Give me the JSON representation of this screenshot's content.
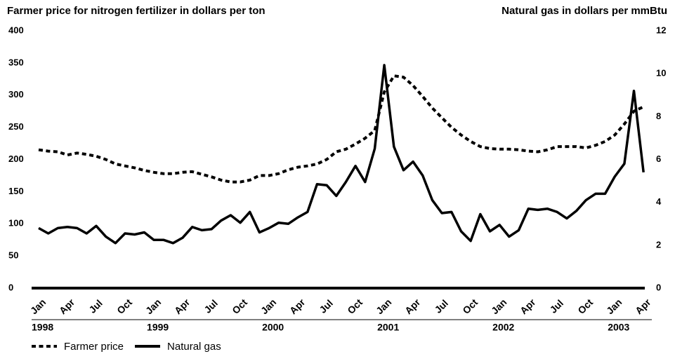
{
  "chart_data": {
    "type": "line",
    "title": "Farmer price for nitrogen fertilizer in dollars per ton",
    "y2_title": "Natural gas in dollars per mmBtu",
    "categories": [
      "Jan",
      null,
      null,
      "Apr",
      null,
      null,
      "Jul",
      null,
      null,
      "Oct",
      null,
      null,
      "Jan",
      null,
      null,
      "Apr",
      null,
      null,
      "Jul",
      null,
      null,
      "Oct",
      null,
      null,
      "Jan",
      null,
      null,
      "Apr",
      null,
      null,
      "Jul",
      null,
      null,
      "Oct",
      null,
      null,
      "Jan",
      null,
      null,
      "Apr",
      null,
      null,
      "Jul",
      null,
      null,
      "Oct",
      null,
      null,
      "Jan",
      null,
      null,
      "Apr",
      null,
      null,
      "Jul",
      null,
      null,
      "Oct",
      null,
      null,
      "Jan",
      null,
      null,
      "Apr"
    ],
    "years": [
      "1998",
      "1999",
      "2000",
      "2001",
      "2002",
      "2003"
    ],
    "series": [
      {
        "name": "Farmer price",
        "color": "#000000",
        "line_style": "dashed",
        "values": [
          215,
          213,
          212,
          207,
          210,
          208,
          205,
          200,
          193,
          190,
          187,
          183,
          180,
          178,
          178,
          180,
          181,
          177,
          173,
          168,
          165,
          165,
          168,
          175,
          175,
          178,
          184,
          188,
          190,
          193,
          200,
          212,
          216,
          224,
          233,
          245,
          305,
          330,
          328,
          315,
          298,
          280,
          265,
          250,
          238,
          228,
          220,
          217,
          216,
          216,
          215,
          213,
          212,
          215,
          220,
          220,
          220,
          218,
          222,
          228,
          238,
          255,
          275,
          282
        ]
      },
      {
        "name": "Natural gas",
        "color": "#000000",
        "line_style": "solid",
        "axis": "y2",
        "values": [
          2.8,
          2.55,
          2.8,
          2.85,
          2.8,
          2.55,
          2.9,
          2.4,
          2.1,
          2.55,
          2.5,
          2.6,
          2.25,
          2.25,
          2.1,
          2.35,
          2.85,
          2.7,
          2.75,
          3.15,
          3.4,
          3.05,
          3.55,
          2.6,
          2.8,
          3.05,
          3.0,
          3.3,
          3.55,
          4.85,
          4.8,
          4.3,
          4.95,
          5.7,
          4.95,
          6.5,
          10.4,
          6.6,
          5.5,
          5.9,
          5.25,
          4.1,
          3.5,
          3.55,
          2.65,
          2.2,
          3.45,
          2.65,
          2.95,
          2.4,
          2.7,
          3.7,
          3.65,
          3.7,
          3.55,
          3.25,
          3.6,
          4.1,
          4.4,
          4.4,
          5.2,
          5.8,
          9.2,
          5.4
        ]
      }
    ],
    "ylim": [
      0,
      400
    ],
    "yticks": [
      0,
      50,
      100,
      150,
      200,
      250,
      300,
      350,
      400
    ],
    "y2lim": [
      0,
      12
    ],
    "y2ticks": [
      0,
      2,
      4,
      6,
      8,
      10,
      12
    ],
    "grid": false,
    "legend": "bottom-left"
  }
}
